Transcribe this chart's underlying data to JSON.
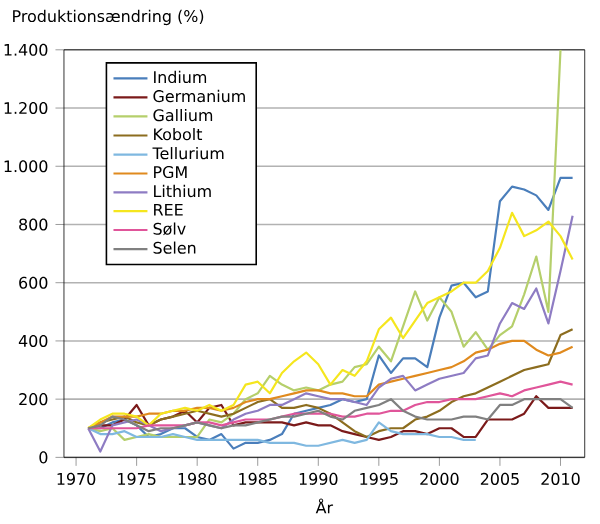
{
  "chart_data": {
    "type": "line",
    "ylabel": "Produktionsændring (%)",
    "xlabel": "År",
    "x": [
      1971,
      1972,
      1973,
      1974,
      1975,
      1976,
      1977,
      1978,
      1979,
      1980,
      1981,
      1982,
      1983,
      1984,
      1985,
      1986,
      1987,
      1988,
      1989,
      1990,
      1991,
      1992,
      1993,
      1994,
      1995,
      1996,
      1997,
      1998,
      1999,
      2000,
      2001,
      2002,
      2003,
      2004,
      2005,
      2006,
      2007,
      2008,
      2009,
      2010,
      2011
    ],
    "xlim": [
      1969,
      2012
    ],
    "xticks": [
      1970,
      1975,
      1980,
      1985,
      1990,
      1995,
      2000,
      2005,
      2010
    ],
    "ylim": [
      0,
      1400
    ],
    "yticks": [
      0,
      200,
      400,
      600,
      800,
      {
        "value": 1000,
        "label": "1.000"
      },
      {
        "value": 1200,
        "label": "1.200"
      },
      {
        "value": 1400,
        "label": "1.400"
      }
    ],
    "grid": "y",
    "legend": "top left",
    "marker": "none",
    "line_style": "solid",
    "series": [
      {
        "name": "Indium",
        "color": "#4a7ebb",
        "values": [
          100,
          100,
          120,
          130,
          110,
          70,
          80,
          100,
          100,
          70,
          60,
          80,
          30,
          50,
          50,
          60,
          80,
          150,
          160,
          170,
          180,
          200,
          190,
          200,
          350,
          290,
          340,
          340,
          310,
          480,
          590,
          600,
          550,
          570,
          880,
          930,
          920,
          900,
          850,
          960,
          960
        ]
      },
      {
        "name": "Germanium",
        "color": "#7b1a1a",
        "values": [
          100,
          110,
          110,
          130,
          180,
          110,
          130,
          140,
          160,
          120,
          170,
          180,
          110,
          120,
          120,
          120,
          120,
          110,
          120,
          110,
          110,
          90,
          80,
          70,
          60,
          70,
          90,
          90,
          80,
          100,
          100,
          70,
          70,
          130,
          130,
          130,
          150,
          210,
          170,
          170,
          170
        ]
      },
      {
        "name": "Gallium",
        "color": "#b5cf6b",
        "values": [
          100,
          90,
          100,
          60,
          70,
          80,
          70,
          70,
          70,
          70,
          130,
          120,
          150,
          200,
          220,
          280,
          250,
          230,
          240,
          230,
          250,
          260,
          310,
          320,
          380,
          330,
          450,
          570,
          470,
          550,
          500,
          380,
          430,
          370,
          420,
          450,
          560,
          690,
          500,
          1400,
          null
        ]
      },
      {
        "name": "Kobolt",
        "color": "#8c6d1f",
        "values": [
          100,
          120,
          130,
          140,
          120,
          110,
          130,
          140,
          150,
          160,
          150,
          140,
          150,
          170,
          190,
          200,
          170,
          170,
          180,
          170,
          150,
          120,
          90,
          70,
          90,
          100,
          100,
          130,
          140,
          160,
          190,
          210,
          220,
          240,
          260,
          280,
          300,
          310,
          320,
          420,
          440
        ]
      },
      {
        "name": "Tellurium",
        "color": "#7fb8e0",
        "values": [
          100,
          80,
          80,
          90,
          70,
          70,
          70,
          80,
          70,
          60,
          60,
          60,
          60,
          60,
          60,
          50,
          50,
          50,
          40,
          40,
          50,
          60,
          50,
          60,
          120,
          90,
          80,
          80,
          80,
          70,
          70,
          60,
          60,
          null,
          null,
          null,
          null,
          null,
          null,
          null,
          null
        ]
      },
      {
        "name": "PGM",
        "color": "#e08a1e",
        "values": [
          100,
          120,
          140,
          140,
          140,
          150,
          150,
          160,
          160,
          170,
          170,
          160,
          170,
          190,
          200,
          200,
          210,
          220,
          230,
          230,
          220,
          220,
          210,
          210,
          250,
          260,
          270,
          280,
          290,
          300,
          310,
          330,
          360,
          370,
          390,
          400,
          400,
          370,
          350,
          360,
          380
        ]
      },
      {
        "name": "Lithium",
        "color": "#8e7cc3",
        "values": [
          100,
          20,
          110,
          120,
          130,
          110,
          90,
          100,
          110,
          120,
          110,
          100,
          130,
          150,
          160,
          180,
          180,
          200,
          220,
          210,
          200,
          200,
          190,
          180,
          240,
          270,
          280,
          230,
          250,
          270,
          280,
          290,
          340,
          350,
          460,
          530,
          510,
          580,
          460,
          640,
          830
        ]
      },
      {
        "name": "REE",
        "color": "#f5e61e",
        "values": [
          100,
          130,
          150,
          150,
          140,
          110,
          150,
          160,
          170,
          160,
          180,
          160,
          180,
          250,
          260,
          220,
          290,
          330,
          360,
          320,
          250,
          300,
          280,
          330,
          440,
          480,
          410,
          470,
          530,
          550,
          570,
          600,
          600,
          640,
          720,
          840,
          760,
          780,
          810,
          760,
          680
        ]
      },
      {
        "name": "Sølv",
        "color": "#e0559a",
        "values": [
          100,
          100,
          100,
          100,
          100,
          110,
          110,
          110,
          110,
          120,
          120,
          110,
          120,
          130,
          130,
          130,
          140,
          150,
          150,
          150,
          150,
          140,
          140,
          150,
          150,
          160,
          160,
          180,
          190,
          190,
          200,
          200,
          200,
          210,
          220,
          210,
          230,
          240,
          250,
          260,
          250
        ]
      },
      {
        "name": "Selen",
        "color": "#808080",
        "values": [
          100,
          110,
          140,
          130,
          110,
          90,
          100,
          100,
          110,
          120,
          110,
          100,
          110,
          110,
          120,
          130,
          140,
          140,
          150,
          160,
          140,
          130,
          160,
          170,
          180,
          200,
          160,
          140,
          130,
          130,
          130,
          140,
          140,
          130,
          180,
          180,
          200,
          200,
          200,
          200,
          170
        ]
      }
    ]
  }
}
